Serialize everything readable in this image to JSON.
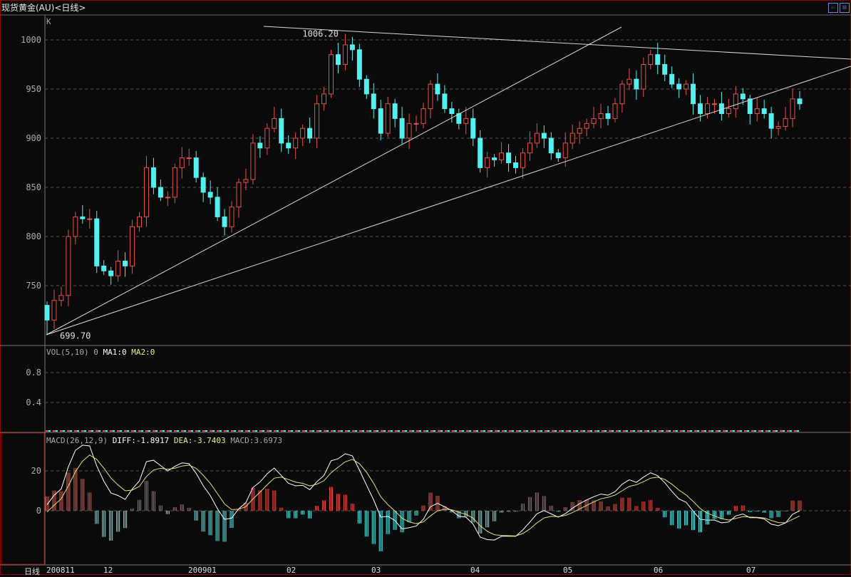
{
  "window": {
    "title": "现货黄金(AU)<日线>",
    "buttons": [
      {
        "icon": "arrow-left-icon",
        "label": "⇦"
      },
      {
        "icon": "restore-icon",
        "label": "⊟"
      }
    ]
  },
  "main_panel": {
    "label": "K"
  },
  "volume_panel": {
    "label": "VOL(5,10)",
    "value": "0",
    "ma1": "MA1:0",
    "ma2": "MA2:0",
    "yticks": [
      "0.8",
      "0.4"
    ]
  },
  "macd_panel": {
    "label": "MACD(26,12,9)",
    "diff": "DIFF:-1.8917",
    "dea": "DEA:-3.7403",
    "macd": "MACD:3.6973",
    "yticks": [
      "20",
      "0"
    ]
  },
  "x_axis": {
    "period_label": "日线",
    "ticks": [
      "200811",
      "12",
      "200901",
      "02",
      "03",
      "04",
      "05",
      "06",
      "07"
    ]
  },
  "colors": {
    "up": "#e8504a",
    "down": "#54f0f0",
    "grid": "#555555",
    "diff": "#ffffff",
    "dea": "#e6e07a",
    "trendline": "#d8d8d8"
  },
  "chart_data": {
    "type": "candlestick",
    "title": "现货黄金(AU)<日线>",
    "ylim": [
      690,
      1020
    ],
    "yticks": [
      "1000",
      "950",
      "900",
      "850",
      "800",
      "750"
    ],
    "grid": true,
    "annotations": [
      {
        "label": "1006.20",
        "index": 42,
        "price": 1006.2
      },
      {
        "label": "699.70",
        "index": 0,
        "price": 699.7
      }
    ],
    "first_open": 730,
    "closes": [
      715,
      735,
      740,
      800,
      820,
      818,
      818,
      770,
      765,
      760,
      775,
      770,
      810,
      820,
      870,
      850,
      840,
      840,
      870,
      880,
      880,
      860,
      845,
      840,
      820,
      810,
      830,
      855,
      858,
      895,
      890,
      910,
      920,
      895,
      890,
      900,
      910,
      900,
      935,
      945,
      985,
      975,
      995,
      990,
      960,
      945,
      930,
      905,
      935,
      920,
      900,
      915,
      915,
      930,
      955,
      945,
      930,
      925,
      915,
      920,
      900,
      870,
      880,
      878,
      885,
      875,
      870,
      885,
      895,
      905,
      900,
      885,
      880,
      895,
      905,
      910,
      915,
      920,
      925,
      920,
      935,
      955,
      960,
      950,
      975,
      985,
      975,
      965,
      955,
      950,
      955,
      935,
      925,
      935,
      935,
      925,
      930,
      945,
      940,
      925,
      930,
      925,
      910,
      912,
      920,
      940,
      935
    ],
    "volume": 0
  }
}
